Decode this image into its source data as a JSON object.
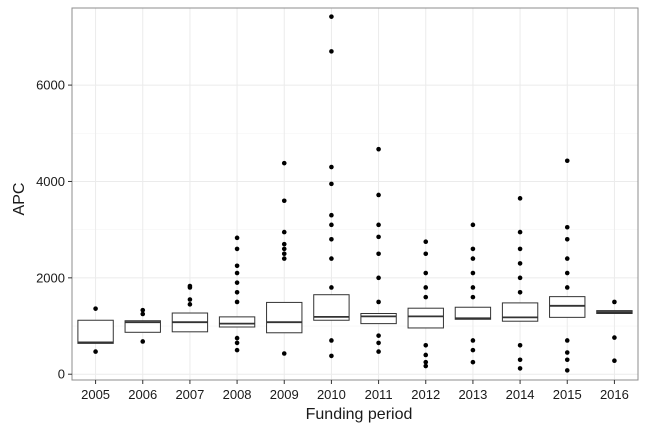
{
  "chart_data": {
    "type": "box",
    "xlabel": "Funding period",
    "ylabel": "APC",
    "ylim": [
      -120,
      7600
    ],
    "yticks": [
      0,
      2000,
      4000,
      6000
    ],
    "grid": true,
    "categories": [
      "2005",
      "2006",
      "2007",
      "2008",
      "2009",
      "2010",
      "2011",
      "2012",
      "2013",
      "2014",
      "2015",
      "2016"
    ],
    "boxes": [
      {
        "category": "2005",
        "q1": 640,
        "median": 660,
        "q3": 1120,
        "whisker_low": 640,
        "whisker_high": 1120,
        "outliers": [
          470,
          1360
        ]
      },
      {
        "category": "2006",
        "q1": 870,
        "median": 1080,
        "q3": 1110,
        "whisker_low": 870,
        "whisker_high": 1110,
        "outliers": [
          680,
          1250,
          1330
        ]
      },
      {
        "category": "2007",
        "q1": 880,
        "median": 1080,
        "q3": 1270,
        "whisker_low": 880,
        "whisker_high": 1270,
        "outliers": [
          1450,
          1550,
          1800,
          1830
        ]
      },
      {
        "category": "2008",
        "q1": 980,
        "median": 1050,
        "q3": 1190,
        "whisker_low": 980,
        "whisker_high": 1190,
        "outliers": [
          500,
          650,
          750,
          1500,
          1700,
          1900,
          2100,
          2250,
          2600,
          2830
        ]
      },
      {
        "category": "2009",
        "q1": 860,
        "median": 1080,
        "q3": 1490,
        "whisker_low": 860,
        "whisker_high": 1490,
        "outliers": [
          430,
          2400,
          2500,
          2600,
          2700,
          2950,
          3600,
          4380
        ]
      },
      {
        "category": "2010",
        "q1": 1120,
        "median": 1190,
        "q3": 1650,
        "whisker_low": 1120,
        "whisker_high": 1650,
        "outliers": [
          380,
          700,
          1800,
          2400,
          2800,
          3100,
          3300,
          3950,
          4300,
          6700,
          7420
        ]
      },
      {
        "category": "2011",
        "q1": 1050,
        "median": 1200,
        "q3": 1260,
        "whisker_low": 1050,
        "whisker_high": 1260,
        "outliers": [
          470,
          650,
          800,
          1500,
          2000,
          2500,
          2850,
          3100,
          3720,
          4670
        ]
      },
      {
        "category": "2012",
        "q1": 960,
        "median": 1200,
        "q3": 1370,
        "whisker_low": 960,
        "whisker_high": 1370,
        "outliers": [
          170,
          250,
          400,
          600,
          1600,
          1800,
          2100,
          2500,
          2750
        ]
      },
      {
        "category": "2013",
        "q1": 1140,
        "median": 1160,
        "q3": 1390,
        "whisker_low": 1140,
        "whisker_high": 1390,
        "outliers": [
          250,
          500,
          700,
          1600,
          1800,
          2100,
          2400,
          2600,
          3100
        ]
      },
      {
        "category": "2014",
        "q1": 1100,
        "median": 1180,
        "q3": 1480,
        "whisker_low": 1100,
        "whisker_high": 1480,
        "outliers": [
          120,
          300,
          600,
          1700,
          2000,
          2300,
          2600,
          2950,
          3650
        ]
      },
      {
        "category": "2015",
        "q1": 1180,
        "median": 1420,
        "q3": 1610,
        "whisker_low": 1180,
        "whisker_high": 1610,
        "outliers": [
          80,
          300,
          450,
          700,
          1800,
          2100,
          2400,
          2800,
          3050,
          4430
        ]
      },
      {
        "category": "2016",
        "q1": 1260,
        "median": 1290,
        "q3": 1320,
        "whisker_low": 1260,
        "whisker_high": 1320,
        "outliers": [
          280,
          760,
          1500
        ]
      }
    ]
  },
  "colors": {
    "panel_border": "#8c8c8c",
    "grid_major": "#ebebeb",
    "grid_minor": "#f5f5f5",
    "box_stroke": "#333333",
    "box_fill": "#ffffff",
    "point": "#000000",
    "tick": "#333333"
  }
}
